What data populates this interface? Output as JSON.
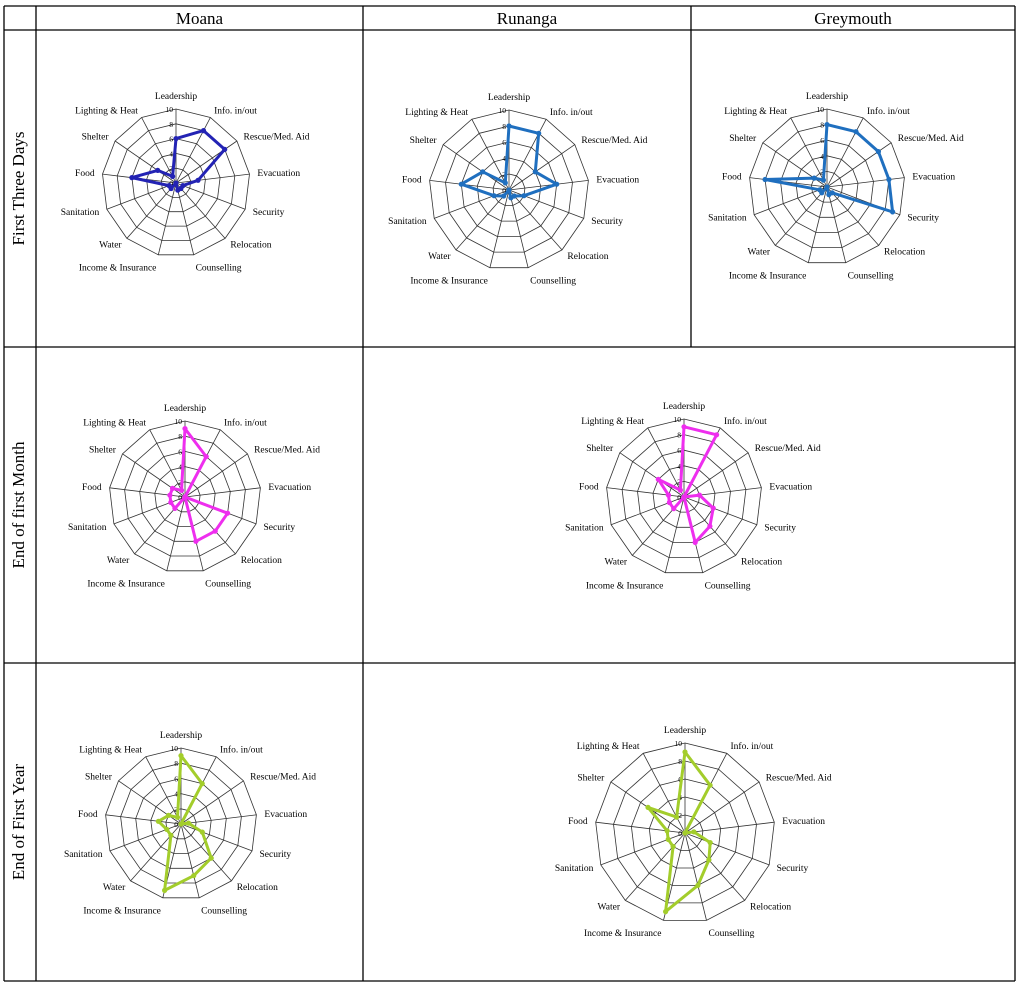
{
  "columns": [
    "Moana",
    "Runanga",
    "Greymouth"
  ],
  "rows": [
    "First Three Days",
    "End of first Month",
    "End of First Year"
  ],
  "axes": [
    "Leadership",
    "Info. in/out",
    "Rescue/Med. Aid",
    "Evacuation",
    "Security",
    "Relocation",
    "Counselling",
    "Income & Insurance",
    "Water",
    "Sanitation",
    "Food",
    "Shelter",
    "Lighting & Heat"
  ],
  "ticks": [
    "0",
    "2",
    "4",
    "6",
    "8",
    "10"
  ],
  "colors": {
    "first_three_days_moana": "#2323b4",
    "first_three_days": "#1f6fbf",
    "end_of_first_month": "#ee2eee",
    "end_of_first_year": "#a3cd2b"
  },
  "chart_data": [
    {
      "type": "radar",
      "row": "First Three Days",
      "column": "Moana",
      "rlim": [
        0,
        10
      ],
      "values": [
        6,
        8,
        8,
        3,
        1,
        1,
        1,
        0,
        1,
        1,
        6,
        3,
        1
      ]
    },
    {
      "type": "radar",
      "row": "First Three Days",
      "column": "Runanga",
      "rlim": [
        0,
        10
      ],
      "values": [
        8,
        8,
        4,
        6,
        2,
        1,
        1,
        0,
        1,
        2,
        6,
        4,
        1
      ]
    },
    {
      "type": "radar",
      "row": "First Three Days",
      "column": "Greymouth",
      "rlim": [
        0,
        10
      ],
      "values": [
        8,
        8,
        8,
        8,
        9,
        1,
        1,
        0,
        1,
        1,
        8,
        2,
        1
      ]
    },
    {
      "type": "radar",
      "row": "End of first Month",
      "column": "Moana",
      "rlim": [
        0,
        10
      ],
      "values": [
        9,
        6,
        0,
        0,
        6,
        6,
        6,
        0,
        2,
        2,
        2,
        2,
        1
      ]
    },
    {
      "type": "radar",
      "row": "End of first Month",
      "column": "Runanga",
      "rlim": [
        0,
        10
      ],
      "values": [
        9,
        9,
        0,
        2,
        4,
        5,
        6,
        0,
        2,
        2,
        2,
        4,
        1
      ]
    },
    {
      "type": "radar",
      "row": "End of First Year",
      "column": "Moana",
      "rlim": [
        0,
        10
      ],
      "values": [
        9,
        6,
        0,
        1,
        3,
        6,
        7,
        9,
        2,
        2,
        3,
        2,
        1
      ]
    },
    {
      "type": "radar",
      "row": "End of First Year",
      "column": "Runanga",
      "rlim": [
        0,
        10
      ],
      "values": [
        9,
        6,
        0,
        1,
        3,
        4,
        6,
        9,
        2,
        2,
        2,
        5,
        2
      ]
    }
  ]
}
